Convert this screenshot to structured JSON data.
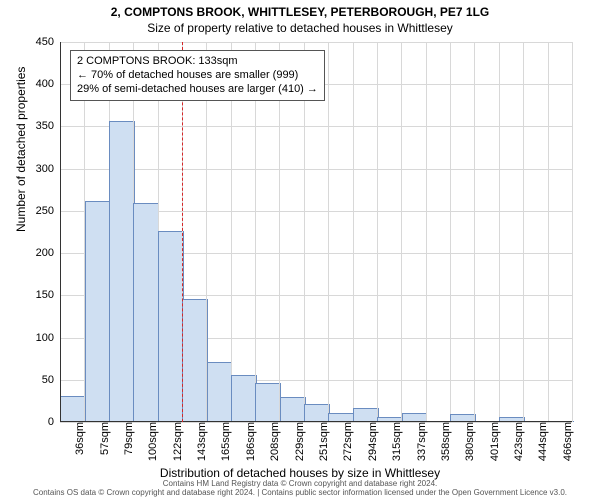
{
  "title": "2, COMPTONS BROOK, WHITTLESEY, PETERBOROUGH, PE7 1LG",
  "subtitle": "Size of property relative to detached houses in Whittlesey",
  "chart": {
    "type": "histogram",
    "ylabel": "Number of detached properties",
    "xlabel": "Distribution of detached houses by size in Whittlesey",
    "ylim": [
      0,
      450
    ],
    "ytick_step": 50,
    "x_categories": [
      "36sqm",
      "57sqm",
      "79sqm",
      "100sqm",
      "122sqm",
      "143sqm",
      "165sqm",
      "186sqm",
      "208sqm",
      "229sqm",
      "251sqm",
      "272sqm",
      "294sqm",
      "315sqm",
      "337sqm",
      "358sqm",
      "380sqm",
      "401sqm",
      "423sqm",
      "444sqm",
      "466sqm"
    ],
    "values": [
      30,
      260,
      355,
      258,
      225,
      145,
      70,
      55,
      45,
      28,
      20,
      10,
      15,
      5,
      10,
      0,
      8,
      0,
      5,
      0,
      0
    ],
    "bar_fill": "#cfdff2",
    "bar_stroke": "#6a8cc0",
    "bar_stroke_width": 1,
    "grid_color": "#d8d8d8",
    "background_color": "#ffffff",
    "marker": {
      "position_sqm": 133,
      "color": "#d62728",
      "dash": "4,3"
    },
    "callout": {
      "lines": [
        "2 COMPTONS BROOK: 133sqm",
        "← 70% of detached houses are smaller (999)",
        "29% of semi-detached houses are larger (410) →"
      ]
    },
    "label_fontsize": 12,
    "tick_fontsize": 11
  },
  "footer_line1": "Contains HM Land Registry data © Crown copyright and database right 2024.",
  "footer_line2": "Contains OS data © Crown copyright and database right 2024. | Contains public sector information licensed under the Open Government Licence v3.0."
}
